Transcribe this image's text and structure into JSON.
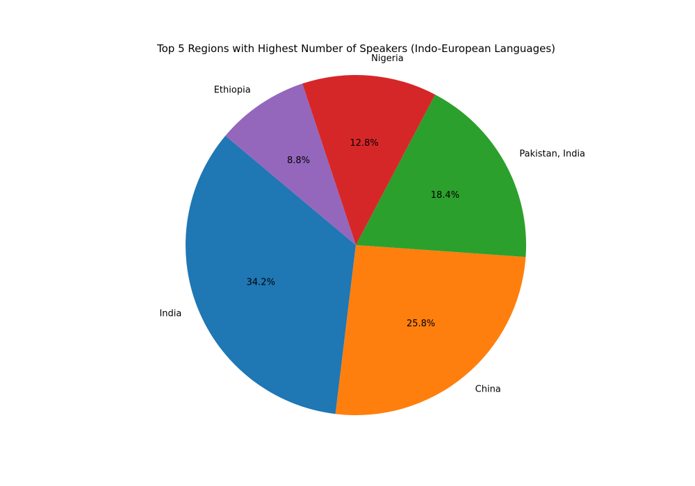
{
  "chart_data": {
    "type": "pie",
    "title": "Top 5 Regions with Highest Number of Speakers (Indo-European Languages)",
    "categories": [
      "India",
      "China",
      "Pakistan, India",
      "Nigeria",
      "Ethiopia"
    ],
    "values": [
      34.2,
      25.8,
      18.4,
      12.8,
      8.8
    ],
    "value_labels": [
      "34.2%",
      "25.8%",
      "18.4%",
      "12.8%",
      "8.8%"
    ],
    "colors": [
      "#1f77b4",
      "#ff7f0e",
      "#2ca02c",
      "#d62728",
      "#9467bd"
    ],
    "start_angle_degrees": 140,
    "direction": "counterclockwise",
    "legend": "none"
  }
}
